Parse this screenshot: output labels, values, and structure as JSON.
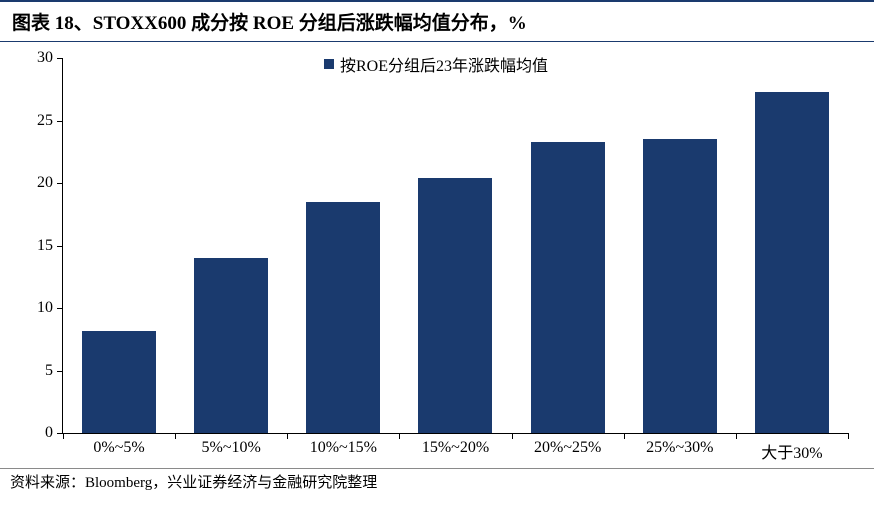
{
  "title": "图表 18、STOXX600 成分按 ROE 分组后涨跌幅均值分布，%",
  "footer": "资料来源：Bloomberg，兴业证券经济与金融研究院整理",
  "chart": {
    "type": "bar",
    "legend_label": "按ROE分组后23年涨跌幅均值",
    "legend_swatch_color": "#1a3a6e",
    "categories": [
      "0%~5%",
      "5%~10%",
      "10%~15%",
      "15%~20%",
      "20%~25%",
      "25%~30%",
      "大于30%"
    ],
    "values": [
      8.2,
      14.0,
      18.5,
      20.4,
      23.3,
      23.5,
      27.3
    ],
    "bar_color": "#1a3a6e",
    "ylim": [
      0,
      30
    ],
    "ytick_step": 5,
    "bar_width_ratio": 0.66,
    "axis_color": "#000000",
    "background_color": "#ffffff",
    "tick_label_fontsize": 16,
    "title_fontsize": 19,
    "header_border_color": "#1a3a6e"
  }
}
